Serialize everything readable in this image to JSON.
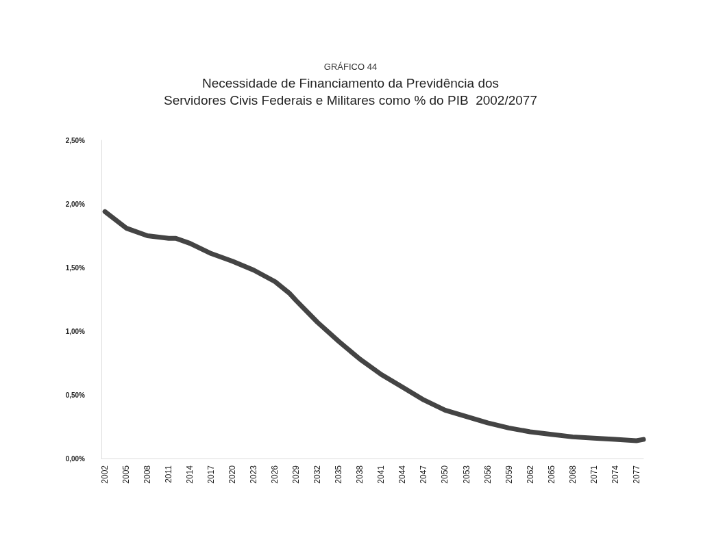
{
  "chart_data": {
    "type": "line",
    "subtitle": "GRÁFICO 44",
    "title": "Necessidade de Financiamento da Previdência dos\nServidores Civis Federais e Militares como % do PIB  2002/2077",
    "x": [
      2002,
      2005,
      2008,
      2011,
      2012,
      2014,
      2017,
      2020,
      2023,
      2026,
      2028,
      2029,
      2032,
      2035,
      2038,
      2041,
      2044,
      2047,
      2050,
      2053,
      2056,
      2059,
      2062,
      2065,
      2068,
      2071,
      2074,
      2077,
      2078
    ],
    "series": [
      {
        "color": "#444444",
        "values": [
          1.94,
          1.81,
          1.75,
          1.73,
          1.73,
          1.69,
          1.61,
          1.55,
          1.48,
          1.39,
          1.3,
          1.24,
          1.07,
          0.92,
          0.78,
          0.66,
          0.56,
          0.46,
          0.38,
          0.33,
          0.28,
          0.24,
          0.21,
          0.19,
          0.17,
          0.16,
          0.15,
          0.14,
          0.15
        ]
      }
    ],
    "xlim": [
      2001.5,
      2078
    ],
    "xticks": [
      2002,
      2005,
      2008,
      2011,
      2014,
      2017,
      2020,
      2023,
      2026,
      2029,
      2032,
      2035,
      2038,
      2041,
      2044,
      2047,
      2050,
      2053,
      2056,
      2059,
      2062,
      2065,
      2068,
      2071,
      2074,
      2077
    ],
    "ylim": [
      0,
      2.5
    ],
    "yticks": [
      {
        "value": 0,
        "label": "0,00%"
      },
      {
        "value": 0.5,
        "label": "0,50%"
      },
      {
        "value": 1,
        "label": "1,00%"
      },
      {
        "value": 1.5,
        "label": "1,50%"
      },
      {
        "value": 2,
        "label": "2,00%"
      },
      {
        "value": 2.5,
        "label": "2,50%"
      }
    ],
    "grid": false,
    "marker": "none",
    "line_style": "solid"
  }
}
